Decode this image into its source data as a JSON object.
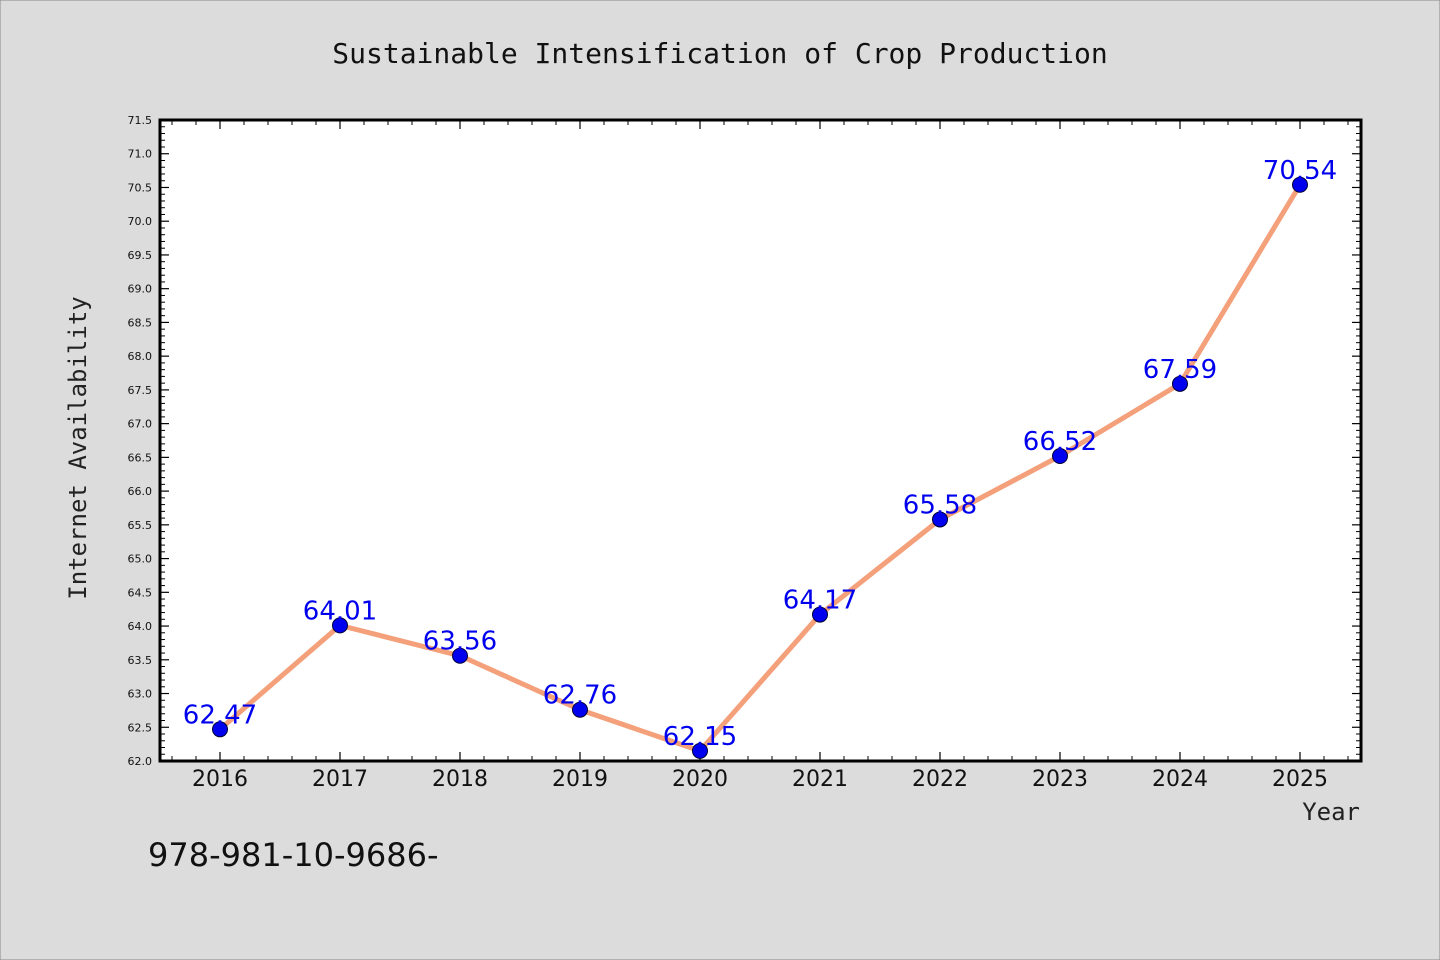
{
  "chart_data": {
    "type": "line",
    "title": "Sustainable Intensification of Crop Production",
    "xlabel": "Year",
    "ylabel": "Internet Availability",
    "categories": [
      "2016",
      "2017",
      "2018",
      "2019",
      "2020",
      "2021",
      "2022",
      "2023",
      "2024",
      "2025"
    ],
    "series": [
      {
        "values": [
          62.47,
          64.01,
          63.56,
          62.76,
          62.15,
          64.17,
          65.58,
          66.52,
          67.59,
          70.54
        ],
        "labels": [
          "62.47",
          "64.01",
          "63.56",
          "62.76",
          "62.15",
          "64.17",
          "65.58",
          "66.52",
          "67.59",
          "70.54"
        ]
      }
    ],
    "ylim": [
      62.0,
      71.5
    ],
    "yticks": [
      "62.0",
      "62.5",
      "63.0",
      "63.5",
      "64.0",
      "64.5",
      "65.0",
      "65.5",
      "66.0",
      "66.5",
      "67.0",
      "67.5",
      "68.0",
      "68.5",
      "69.0",
      "69.5",
      "70.0",
      "70.5",
      "71.0",
      "71.5"
    ],
    "grid": false,
    "legend": "none",
    "colors": {
      "background": "#dcdcdc",
      "plot_background": "#ffffff",
      "line": "#f4a07a",
      "marker": "#0000ee",
      "data_label": "#0000ee",
      "axis": "#000000"
    }
  },
  "footer": {
    "text": "978-981-10-9686-"
  }
}
